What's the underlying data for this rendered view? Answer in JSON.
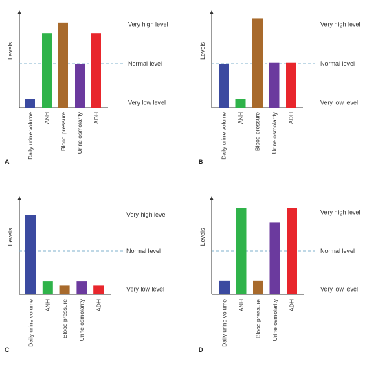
{
  "chart_data": [
    {
      "type": "bar",
      "panel": "A",
      "ylabel": "Levels",
      "categories": [
        "Daily urine volume",
        "ANH",
        "Blood pressure",
        "Urine osmolarity",
        "ADH"
      ],
      "values": [
        0.1,
        0.85,
        0.97,
        0.5,
        0.85
      ],
      "colors": [
        "#3b4aa0",
        "#2fb34a",
        "#a86a2c",
        "#6b3a9e",
        "#e8262c"
      ],
      "reference_lines": [
        {
          "label": "Very high level",
          "value": 0.95,
          "drawn": false
        },
        {
          "label": "Normal level",
          "value": 0.5,
          "drawn": true,
          "style": "dashed",
          "color": "#7fb2cc"
        },
        {
          "label": "Very low level",
          "value": 0.06,
          "drawn": false
        }
      ],
      "ylim": [
        0,
        1
      ]
    },
    {
      "type": "bar",
      "panel": "B",
      "ylabel": "Levels",
      "categories": [
        "Daily urine volume",
        "ANH",
        "Blood pressure",
        "Urine osmolarity",
        "ADH"
      ],
      "values": [
        0.5,
        0.1,
        1.02,
        0.51,
        0.51
      ],
      "colors": [
        "#3b4aa0",
        "#2fb34a",
        "#a86a2c",
        "#6b3a9e",
        "#e8262c"
      ],
      "reference_lines": [
        {
          "label": "Very high level",
          "value": 0.95,
          "drawn": false
        },
        {
          "label": "Normal level",
          "value": 0.5,
          "drawn": true,
          "style": "dashed",
          "color": "#7fb2cc"
        },
        {
          "label": "Very low level",
          "value": 0.06,
          "drawn": false
        }
      ],
      "ylim": [
        0,
        1
      ]
    },
    {
      "type": "bar",
      "panel": "C",
      "ylabel": "Levels",
      "categories": [
        "Daily urine volume",
        "ANH",
        "Blood pressure",
        "Urine osmolarity",
        "ADH"
      ],
      "values": [
        0.92,
        0.15,
        0.1,
        0.15,
        0.1
      ],
      "colors": [
        "#3b4aa0",
        "#2fb34a",
        "#a86a2c",
        "#6b3a9e",
        "#e8262c"
      ],
      "reference_lines": [
        {
          "label": "Very high level",
          "value": 0.92,
          "drawn": false
        },
        {
          "label": "Normal level",
          "value": 0.5,
          "drawn": true,
          "style": "dashed",
          "color": "#7fb2cc"
        },
        {
          "label": "Very low level",
          "value": 0.06,
          "drawn": false
        }
      ],
      "ylim": [
        0,
        1
      ]
    },
    {
      "type": "bar",
      "panel": "D",
      "ylabel": "Levels",
      "categories": [
        "Daily urine volume",
        "ANH",
        "Blood pressure",
        "Urine osmolarity",
        "ADH"
      ],
      "values": [
        0.16,
        1.0,
        0.16,
        0.83,
        1.0
      ],
      "colors": [
        "#3b4aa0",
        "#2fb34a",
        "#a86a2c",
        "#6b3a9e",
        "#e8262c"
      ],
      "reference_lines": [
        {
          "label": "Very high level",
          "value": 0.95,
          "drawn": false
        },
        {
          "label": "Normal level",
          "value": 0.5,
          "drawn": true,
          "style": "dashed",
          "color": "#7fb2cc"
        },
        {
          "label": "Very low level",
          "value": 0.06,
          "drawn": false
        }
      ],
      "ylim": [
        0,
        1
      ]
    }
  ]
}
